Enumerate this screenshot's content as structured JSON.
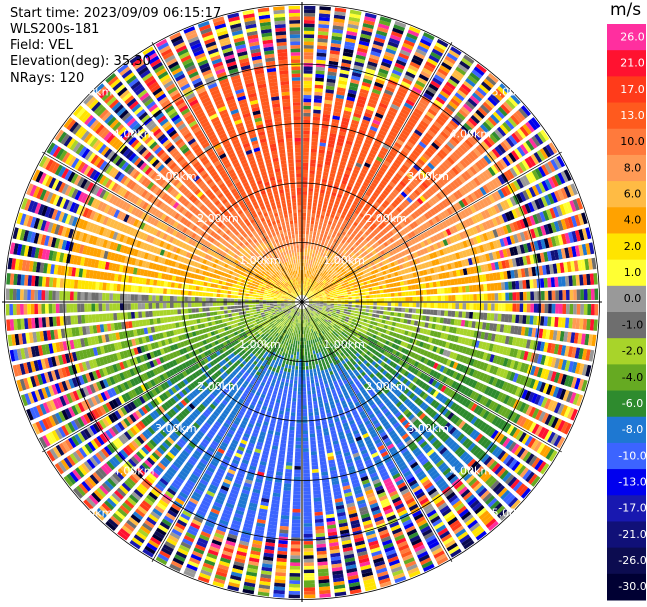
{
  "header": {
    "start_time": "Start time: 2023/09/09 06:15:17",
    "station": "WLS200s-181",
    "field": "Field: VEL",
    "elevation": "Elevation(deg): 35.30",
    "nrays": "NRays: 120"
  },
  "colorbar": {
    "unit": "m/s",
    "ticks": [
      "26.0",
      "21.0",
      "17.0",
      "13.0",
      "10.0",
      "8.0",
      "6.0",
      "4.0",
      "2.0",
      "1.0",
      "0.0",
      "-1.0",
      "-2.0",
      "-4.0",
      "-6.0",
      "-8.0",
      "-10.0",
      "-13.0",
      "-17.0",
      "-21.0",
      "-26.0",
      "-30.0"
    ],
    "colors": [
      "#ff2f9f",
      "#ff1230",
      "#ff3b1a",
      "#ff5a1e",
      "#ff7a3c",
      "#ff9a55",
      "#ffbb44",
      "#ffa200",
      "#ffe400",
      "#ffff33",
      "#999999",
      "#6e6e6e",
      "#a8d42a",
      "#66aa22",
      "#2e8b2e",
      "#1e78d2",
      "#3c64ff",
      "#0000ee",
      "#1818b0",
      "#101078",
      "#0c0c50",
      "#000033"
    ]
  },
  "chart_data": {
    "type": "ppi-velocity",
    "field": "VEL",
    "units": "m/s",
    "nrays": 120,
    "elevation_deg": 35.3,
    "range_ring_labels": [
      "1.00km",
      "2.00km",
      "3.00km",
      "4.00km",
      "5.00km"
    ],
    "max_range_km": 5.0,
    "colorbar_range": [
      -30.0,
      26.0
    ],
    "dominant_pattern": {
      "north_sector": "positive velocities 8–17 m/s (orange/red)",
      "south_sector": "negative velocities -4 to -10 m/s (green/blue)",
      "outer_region": "noisy speckle across full colour range"
    }
  }
}
